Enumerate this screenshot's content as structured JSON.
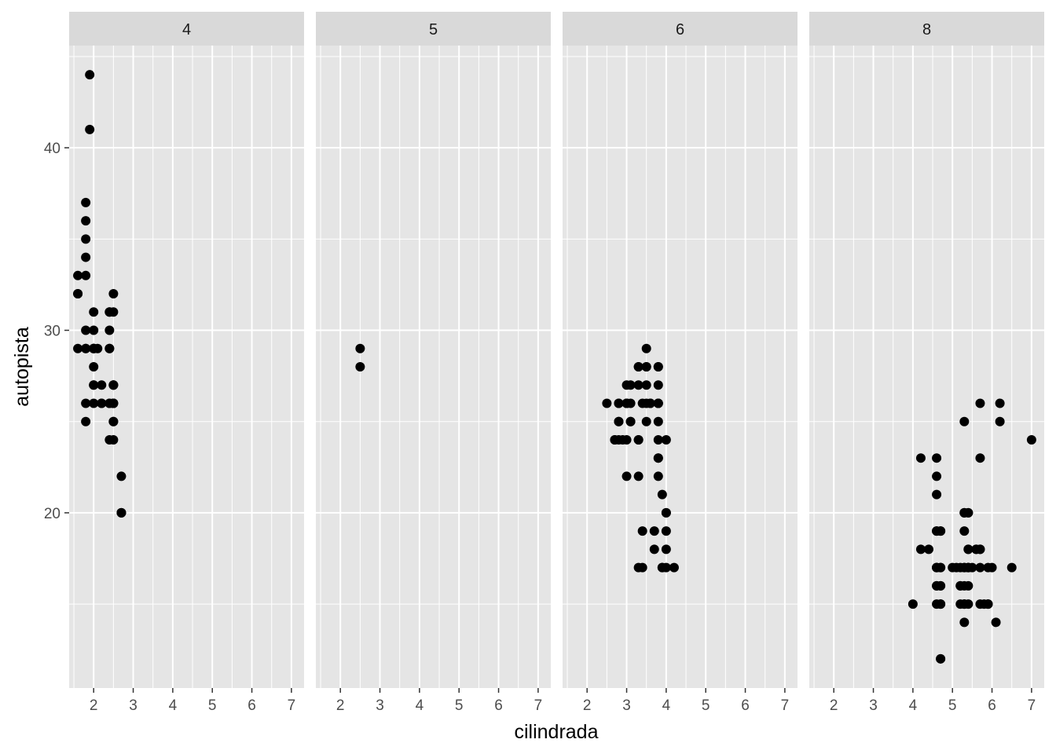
{
  "chart_data": {
    "type": "scatter",
    "facet_variable": "cyl",
    "xlabel": "cilindrada",
    "ylabel": "autopista",
    "xlim": [
      1.38,
      7.32
    ],
    "ylim": [
      10.4,
      45.6
    ],
    "x_ticks": [
      2,
      3,
      4,
      5,
      6,
      7
    ],
    "y_ticks": [
      20,
      30,
      40
    ],
    "grid": true,
    "colors": {
      "panel_background": "#e5e5e5",
      "strip_background": "#d9d9d9",
      "grid_line": "#ffffff",
      "point": "#000000"
    },
    "panels": [
      {
        "strip_label": "4",
        "points": [
          [
            1.8,
            29
          ],
          [
            1.8,
            29
          ],
          [
            2.0,
            31
          ],
          [
            2.0,
            30
          ],
          [
            1.8,
            26
          ],
          [
            1.8,
            25
          ],
          [
            2.0,
            28
          ],
          [
            2.0,
            27
          ],
          [
            2.4,
            30
          ],
          [
            2.5,
            27
          ],
          [
            2.5,
            25
          ],
          [
            2.5,
            24
          ],
          [
            2.2,
            26
          ],
          [
            2.2,
            27
          ],
          [
            2.4,
            26
          ],
          [
            2.4,
            26
          ],
          [
            2.5,
            26
          ],
          [
            1.6,
            33
          ],
          [
            1.6,
            32
          ],
          [
            1.6,
            32
          ],
          [
            1.6,
            29
          ],
          [
            1.8,
            36
          ],
          [
            1.8,
            35
          ],
          [
            1.8,
            37
          ],
          [
            2.0,
            29
          ],
          [
            1.9,
            44
          ],
          [
            2.0,
            29
          ],
          [
            2.0,
            26
          ],
          [
            2.0,
            29
          ],
          [
            2.5,
            26
          ],
          [
            2.4,
            24
          ],
          [
            2.2,
            26
          ],
          [
            2.5,
            27
          ],
          [
            2.5,
            32
          ],
          [
            2.5,
            31
          ],
          [
            2.7,
            20
          ],
          [
            2.7,
            20
          ],
          [
            2.7,
            22
          ],
          [
            2.7,
            20
          ],
          [
            1.8,
            30
          ],
          [
            1.8,
            33
          ],
          [
            1.8,
            34
          ],
          [
            1.9,
            41
          ],
          [
            2.0,
            27
          ],
          [
            2.0,
            29
          ],
          [
            2.1,
            29
          ],
          [
            2.4,
            31
          ],
          [
            2.4,
            29
          ],
          [
            2.5,
            27
          ],
          [
            2.5,
            25
          ],
          [
            2.4,
            31
          ],
          [
            2.5,
            26
          ],
          [
            2.5,
            26
          ],
          [
            2.4,
            29
          ]
        ]
      },
      {
        "strip_label": "5",
        "points": [
          [
            2.5,
            29
          ],
          [
            2.5,
            28
          ]
        ]
      },
      {
        "strip_label": "6",
        "points": [
          [
            2.8,
            26
          ],
          [
            2.8,
            26
          ],
          [
            3.1,
            27
          ],
          [
            2.8,
            25
          ],
          [
            3.1,
            25
          ],
          [
            3.8,
            25
          ],
          [
            3.8,
            23
          ],
          [
            4.0,
            20
          ],
          [
            3.3,
            24
          ],
          [
            3.3,
            24
          ],
          [
            3.3,
            22
          ],
          [
            3.8,
            22
          ],
          [
            3.8,
            24
          ],
          [
            4.0,
            24
          ],
          [
            3.7,
            19
          ],
          [
            3.7,
            18
          ],
          [
            3.9,
            17
          ],
          [
            3.9,
            17
          ],
          [
            4.0,
            17
          ],
          [
            4.0,
            19
          ],
          [
            4.0,
            20
          ],
          [
            4.2,
            17
          ],
          [
            3.8,
            26
          ],
          [
            3.8,
            26
          ],
          [
            2.5,
            26
          ],
          [
            3.0,
            26
          ],
          [
            3.5,
            26
          ],
          [
            3.5,
            25
          ],
          [
            3.3,
            28
          ],
          [
            3.5,
            27
          ],
          [
            3.0,
            26
          ],
          [
            3.0,
            26
          ],
          [
            2.8,
            24
          ],
          [
            3.1,
            26
          ],
          [
            2.7,
            24
          ],
          [
            2.7,
            24
          ],
          [
            3.3,
            17
          ],
          [
            3.4,
            17
          ],
          [
            3.4,
            19
          ],
          [
            3.6,
            26
          ],
          [
            3.8,
            23
          ],
          [
            3.8,
            26
          ],
          [
            3.8,
            28
          ],
          [
            3.5,
            29
          ],
          [
            3.0,
            24
          ],
          [
            2.9,
            24
          ],
          [
            2.8,
            25
          ],
          [
            3.0,
            22
          ],
          [
            3.3,
            28
          ],
          [
            3.3,
            27
          ],
          [
            3.5,
            28
          ],
          [
            3.6,
            26
          ],
          [
            3.8,
            28
          ],
          [
            3.0,
            27
          ],
          [
            3.1,
            25
          ],
          [
            3.4,
            26
          ],
          [
            3.9,
            21
          ],
          [
            3.5,
            28
          ],
          [
            3.8,
            27
          ],
          [
            4.0,
            18
          ]
        ]
      },
      {
        "strip_label": "8",
        "points": [
          [
            5.7,
            26
          ],
          [
            5.7,
            23
          ],
          [
            6.2,
            26
          ],
          [
            6.2,
            25
          ],
          [
            7.0,
            24
          ],
          [
            5.3,
            20
          ],
          [
            5.3,
            15
          ],
          [
            5.7,
            18
          ],
          [
            6.5,
            17
          ],
          [
            5.2,
            17
          ],
          [
            5.2,
            16
          ],
          [
            4.7,
            12
          ],
          [
            4.7,
            17
          ],
          [
            4.7,
            16
          ],
          [
            5.2,
            15
          ],
          [
            5.7,
            18
          ],
          [
            5.9,
            15
          ],
          [
            4.7,
            17
          ],
          [
            4.7,
            19
          ],
          [
            4.7,
            16
          ],
          [
            5.2,
            16
          ],
          [
            5.7,
            17
          ],
          [
            5.9,
            15
          ],
          [
            4.6,
            17
          ],
          [
            5.4,
            17
          ],
          [
            5.4,
            18
          ],
          [
            4.0,
            15
          ],
          [
            4.7,
            19
          ],
          [
            4.6,
            17
          ],
          [
            5.0,
            17
          ],
          [
            5.4,
            17
          ],
          [
            4.2,
            23
          ],
          [
            4.2,
            18
          ],
          [
            4.4,
            18
          ],
          [
            4.6,
            23
          ],
          [
            4.6,
            22
          ],
          [
            4.6,
            21
          ],
          [
            4.7,
            15
          ],
          [
            5.3,
            25
          ],
          [
            5.3,
            20
          ],
          [
            5.4,
            20
          ],
          [
            5.3,
            19
          ],
          [
            5.3,
            17
          ],
          [
            5.6,
            18
          ],
          [
            6.1,
            14
          ],
          [
            4.6,
            16
          ],
          [
            4.6,
            19
          ],
          [
            5.4,
            18
          ],
          [
            4.7,
            12
          ],
          [
            5.4,
            15
          ],
          [
            5.4,
            16
          ],
          [
            5.7,
            15
          ],
          [
            6.0,
            17
          ],
          [
            5.6,
            18
          ],
          [
            4.6,
            15
          ],
          [
            5.3,
            14
          ],
          [
            5.3,
            15
          ],
          [
            5.3,
            17
          ],
          [
            5.3,
            20
          ],
          [
            5.4,
            17
          ],
          [
            4.6,
            16
          ],
          [
            4.6,
            17
          ],
          [
            4.6,
            19
          ],
          [
            5.4,
            20
          ],
          [
            5.9,
            17
          ],
          [
            5.3,
            16
          ],
          [
            5.5,
            17
          ],
          [
            5.1,
            17
          ],
          [
            4.7,
            15
          ],
          [
            5.8,
            15
          ]
        ]
      }
    ]
  }
}
